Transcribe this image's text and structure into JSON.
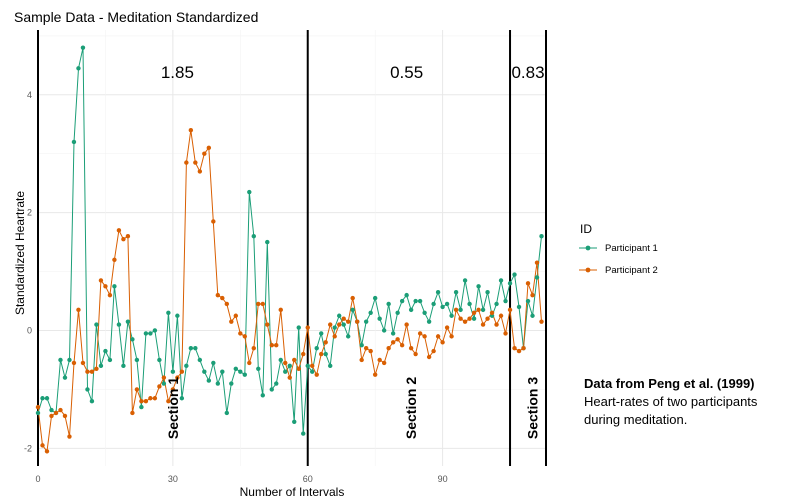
{
  "chart_data": {
    "type": "line",
    "title": "Sample Data - Meditation Standardized",
    "xlabel": "Number of Intervals",
    "ylabel": "Standardized Heartrate",
    "xlim": [
      0,
      113
    ],
    "ylim": [
      -2.3,
      5.1
    ],
    "x_ticks": [
      0,
      30,
      60,
      90
    ],
    "y_ticks": [
      -2,
      0,
      2,
      4
    ],
    "grid": true,
    "legend": {
      "title": "ID",
      "position": "right",
      "entries": [
        {
          "label": "Participant 1",
          "color": "#1b9e77"
        },
        {
          "label": "Participant 2",
          "color": "#d95f02"
        }
      ]
    },
    "dividers_x": [
      0,
      60,
      105,
      113
    ],
    "section_labels": [
      {
        "label": "Section 1",
        "x": 30
      },
      {
        "label": "Section 2",
        "x": 83
      },
      {
        "label": "Section 3",
        "x": 110
      }
    ],
    "section_values": [
      {
        "label": "1.85",
        "x": 31
      },
      {
        "label": "0.55",
        "x": 82
      },
      {
        "label": "0.83",
        "x": 109
      }
    ],
    "series": [
      {
        "name": "Participant 1",
        "color": "#1b9e77",
        "x": [
          0,
          1,
          2,
          3,
          4,
          5,
          6,
          7,
          8,
          9,
          10,
          11,
          12,
          13,
          14,
          15,
          16,
          17,
          18,
          19,
          20,
          21,
          22,
          23,
          24,
          25,
          26,
          27,
          28,
          29,
          30,
          31,
          32,
          33,
          34,
          35,
          36,
          37,
          38,
          39,
          40,
          41,
          42,
          43,
          44,
          45,
          46,
          47,
          48,
          49,
          50,
          51,
          52,
          53,
          54,
          55,
          56,
          57,
          58,
          59,
          60,
          61,
          62,
          63,
          64,
          65,
          66,
          67,
          68,
          69,
          70,
          71,
          72,
          73,
          74,
          75,
          76,
          77,
          78,
          79,
          80,
          81,
          82,
          83,
          84,
          85,
          86,
          87,
          88,
          89,
          90,
          91,
          92,
          93,
          94,
          95,
          96,
          97,
          98,
          99,
          100,
          101,
          102,
          103,
          104,
          105,
          106,
          107,
          108,
          109,
          110,
          111,
          112
        ],
        "y": [
          -1.4,
          -1.15,
          -1.15,
          -1.35,
          -1.4,
          -0.5,
          -0.8,
          -0.5,
          3.2,
          4.45,
          4.8,
          -1.0,
          -1.2,
          0.1,
          -0.6,
          -0.35,
          -0.5,
          0.75,
          0.1,
          -0.6,
          0.15,
          -0.15,
          -0.5,
          -1.3,
          -0.05,
          -0.05,
          0.0,
          -0.5,
          -0.9,
          0.3,
          -0.7,
          0.25,
          -1.15,
          -0.6,
          -0.3,
          -0.3,
          -0.5,
          -0.7,
          -0.85,
          -0.55,
          -0.9,
          -0.7,
          -1.4,
          -0.9,
          -0.65,
          -0.7,
          -0.75,
          2.35,
          1.6,
          -0.65,
          -1.1,
          1.5,
          -1.0,
          -0.9,
          -0.5,
          -0.7,
          -0.6,
          -1.55,
          0.05,
          -1.75,
          -0.6,
          -0.7,
          -0.3,
          -0.05,
          -0.4,
          -0.6,
          0.05,
          0.25,
          0.1,
          -0.1,
          0.35,
          0.15,
          -0.25,
          0.15,
          0.3,
          0.55,
          0.2,
          0.0,
          0.45,
          -0.05,
          0.3,
          0.5,
          0.6,
          0.35,
          0.5,
          0.5,
          0.3,
          0.15,
          0.45,
          0.65,
          0.4,
          0.45,
          0.25,
          0.65,
          0.35,
          0.85,
          0.45,
          0.2,
          0.75,
          0.35,
          0.65,
          0.25,
          0.45,
          0.85,
          0.5,
          0.8,
          0.95,
          0.4,
          -0.3,
          0.5,
          0.25,
          0.9,
          1.6
        ]
      },
      {
        "name": "Participant 2",
        "color": "#d95f02",
        "x": [
          0,
          1,
          2,
          3,
          4,
          5,
          6,
          7,
          8,
          9,
          10,
          11,
          12,
          13,
          14,
          15,
          16,
          17,
          18,
          19,
          20,
          21,
          22,
          23,
          24,
          25,
          26,
          27,
          28,
          29,
          30,
          31,
          32,
          33,
          34,
          35,
          36,
          37,
          38,
          39,
          40,
          41,
          42,
          43,
          44,
          45,
          46,
          47,
          48,
          49,
          50,
          51,
          52,
          53,
          54,
          55,
          56,
          57,
          58,
          59,
          60,
          61,
          62,
          63,
          64,
          65,
          66,
          67,
          68,
          69,
          70,
          71,
          72,
          73,
          74,
          75,
          76,
          77,
          78,
          79,
          80,
          81,
          82,
          83,
          84,
          85,
          86,
          87,
          88,
          89,
          90,
          91,
          92,
          93,
          94,
          95,
          96,
          97,
          98,
          99,
          100,
          101,
          102,
          103,
          104,
          105,
          106,
          107,
          108,
          109,
          110,
          111,
          112
        ],
        "y": [
          -1.3,
          -1.95,
          -2.05,
          -1.45,
          -1.4,
          -1.35,
          -1.45,
          -1.8,
          -0.55,
          0.35,
          -0.55,
          -0.7,
          -0.7,
          -0.65,
          0.85,
          0.75,
          0.6,
          1.2,
          1.7,
          1.55,
          1.6,
          -1.4,
          -1.0,
          -1.2,
          -1.2,
          -1.15,
          -1.15,
          -0.95,
          -0.8,
          -1.2,
          -1.0,
          -0.8,
          -0.7,
          2.85,
          3.4,
          2.85,
          2.7,
          3.0,
          3.1,
          1.85,
          0.6,
          0.55,
          0.45,
          0.15,
          0.25,
          -0.05,
          -0.1,
          -0.55,
          -0.3,
          0.45,
          0.45,
          0.1,
          -0.25,
          -0.25,
          0.35,
          -0.55,
          -0.8,
          -0.5,
          -0.65,
          -0.4,
          0.05,
          -0.6,
          -0.75,
          -0.4,
          -0.2,
          0.1,
          -0.1,
          0.1,
          0.2,
          0.15,
          0.55,
          0.15,
          -0.5,
          -0.3,
          -0.35,
          -0.75,
          -0.5,
          -0.55,
          -0.3,
          -0.2,
          -0.15,
          -0.25,
          0.1,
          -0.3,
          -0.4,
          -0.05,
          -0.1,
          -0.45,
          -0.35,
          -0.1,
          -0.2,
          0.05,
          -0.1,
          0.35,
          0.2,
          0.15,
          0.2,
          0.3,
          0.35,
          0.1,
          0.2,
          0.3,
          0.1,
          0.25,
          -0.05,
          0.35,
          -0.3,
          -0.35,
          -0.3,
          0.8,
          0.6,
          1.15,
          0.15
        ]
      }
    ]
  },
  "annotation": {
    "title": "Data from Peng et al. (1999)",
    "body_line1": "Heart-rates of two participants",
    "body_line2": "during meditation."
  }
}
